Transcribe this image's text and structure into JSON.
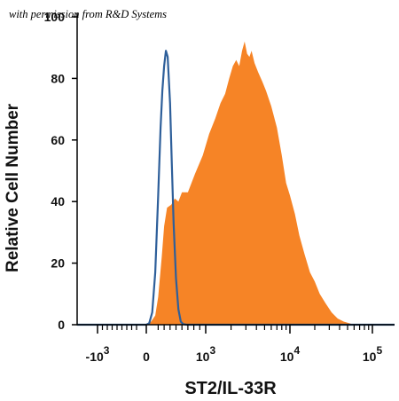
{
  "chart_data": {
    "type": "area",
    "credit": "with permission from R&D Systems",
    "xlabel": "ST2/IL-33R",
    "ylabel": "Relative Cell Number",
    "xscale": "biexponential",
    "xlim": [
      -3000,
      160000
    ],
    "ylim": [
      0,
      100
    ],
    "y_ticks": [
      0,
      20,
      40,
      60,
      80,
      100
    ],
    "x_ticks": [
      {
        "value": -1000,
        "base": "-10",
        "exp": "3"
      },
      {
        "value": 0,
        "base": "0",
        "exp": ""
      },
      {
        "value": 1000,
        "base": "10",
        "exp": "3"
      },
      {
        "value": 10000,
        "base": "10",
        "exp": "4"
      },
      {
        "value": 100000,
        "base": "10",
        "exp": "5"
      }
    ],
    "grid": false,
    "colors": {
      "filled": "#f68426",
      "line": "#2e5f9a",
      "axis": "#000000"
    },
    "series": [
      {
        "kind": "filled",
        "x": [
          -3000,
          0,
          80,
          150,
          200,
          260,
          300,
          350,
          420,
          480,
          540,
          600,
          700,
          820,
          950,
          1100,
          1300,
          1500,
          1700,
          1900,
          2100,
          2300,
          2500,
          2700,
          2900,
          3100,
          3300,
          3500,
          3800,
          4200,
          4700,
          5200,
          6000,
          7000,
          8000,
          9000,
          10000,
          11500,
          13000,
          15000,
          17500,
          20000,
          23000,
          27000,
          32000,
          38000,
          45000,
          52000,
          60000,
          70000,
          80000,
          160000
        ],
        "y": [
          0,
          0,
          1,
          3,
          9,
          22,
          32,
          38,
          39,
          41,
          40,
          43,
          43,
          49,
          55,
          62,
          67,
          72,
          75,
          80,
          84,
          86,
          84,
          89,
          92,
          88,
          87,
          89,
          85,
          82,
          79,
          76,
          71,
          64,
          55,
          46,
          42,
          36,
          29,
          23,
          17,
          14,
          10,
          7,
          4,
          2,
          1,
          0.5,
          0,
          0,
          0,
          0
        ]
      },
      {
        "kind": "line",
        "x": [
          -3000,
          0,
          50,
          100,
          150,
          200,
          240,
          270,
          300,
          330,
          360,
          400,
          430,
          460,
          500,
          540,
          580,
          620,
          680,
          160000
        ],
        "y": [
          0,
          0,
          0.5,
          4,
          17,
          42,
          64,
          76,
          84,
          89,
          87,
          72,
          52,
          33,
          15,
          5,
          1,
          0.2,
          0,
          0
        ]
      }
    ]
  }
}
